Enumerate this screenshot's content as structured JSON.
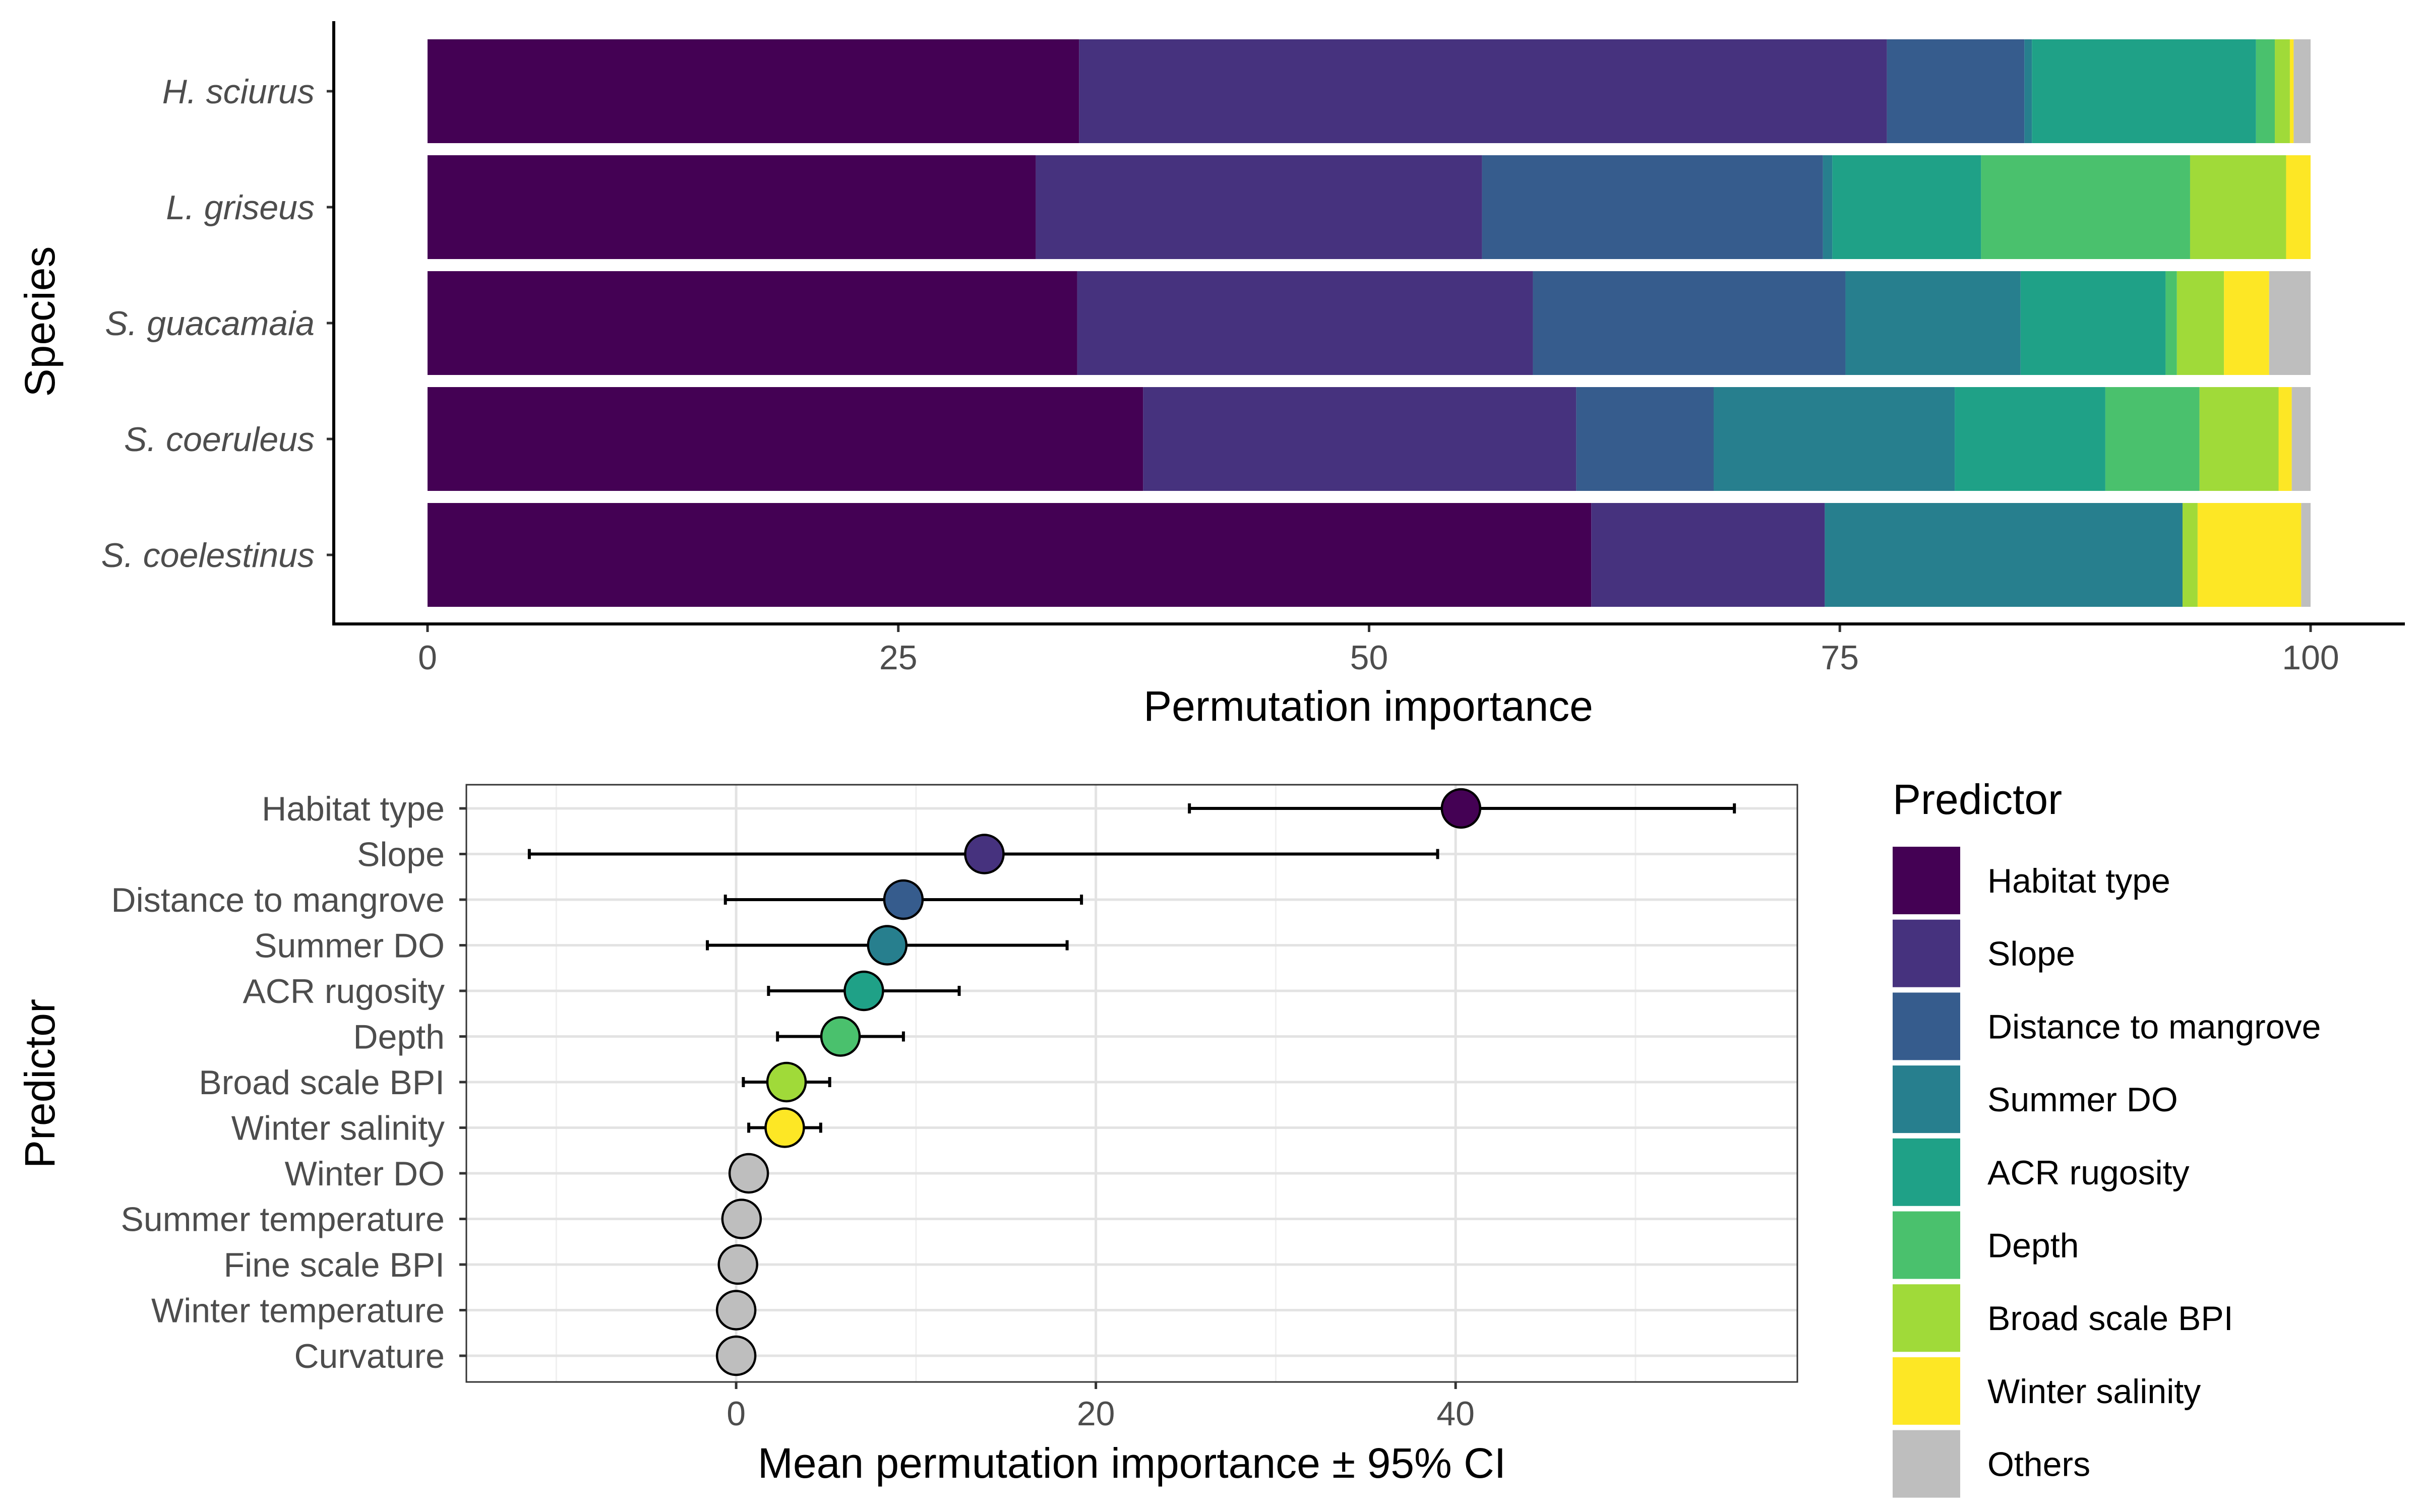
{
  "chart_data": [
    {
      "type": "bar",
      "orientation": "horizontal",
      "stacked": true,
      "ylabel": "Species",
      "xlabel": "Permutation importance",
      "xlim": [
        0,
        100
      ],
      "x_ticks": [
        "0",
        "25",
        "50",
        "75",
        "100"
      ],
      "grid": false,
      "categories": [
        "H. sciurus",
        "L. griseus",
        "S. guacamaia",
        "S. coeruleus",
        "S. coelestinus"
      ],
      "series": [
        {
          "name": "Habitat type",
          "color": "#440154",
          "values": [
            34.6,
            32.3,
            34.5,
            38.0,
            61.8
          ]
        },
        {
          "name": "Slope",
          "color": "#46327E",
          "values": [
            42.9,
            23.7,
            24.2,
            23.0,
            12.4
          ]
        },
        {
          "name": "Distance to mangrove",
          "color": "#365C8D",
          "values": [
            7.3,
            18.1,
            16.6,
            7.3,
            0.0
          ]
        },
        {
          "name": "Summer DO",
          "color": "#277F8E",
          "values": [
            0.4,
            0.5,
            9.3,
            12.8,
            19.0
          ]
        },
        {
          "name": "ACR rugosity",
          "color": "#1FA187",
          "values": [
            11.9,
            7.9,
            7.7,
            8.0,
            0.0
          ]
        },
        {
          "name": "Depth",
          "color": "#4AC16D",
          "values": [
            1.0,
            11.1,
            0.6,
            5.0,
            0.0
          ]
        },
        {
          "name": "Broad scale BPI",
          "color": "#A0DA39",
          "values": [
            0.8,
            5.1,
            2.5,
            4.2,
            0.8
          ]
        },
        {
          "name": "Winter salinity",
          "color": "#FDE725",
          "values": [
            0.2,
            1.3,
            2.4,
            0.7,
            5.5
          ]
        },
        {
          "name": "Others",
          "color": "#BEBEBE",
          "values": [
            0.9,
            0.0,
            2.2,
            1.0,
            0.5
          ]
        }
      ]
    },
    {
      "type": "scatter",
      "subtype": "point-with-error-bars",
      "xlabel": "Mean permutation importance ± 95% CI",
      "ylabel": "Predictor",
      "xlim": [
        -15,
        59
      ],
      "x_ticks": [
        "0",
        "20",
        "40"
      ],
      "grid": true,
      "categories": [
        "Habitat type",
        "Slope",
        "Distance to mangrove",
        "Summer DO",
        "ACR rugosity",
        "Depth",
        "Broad scale BPI",
        "Winter salinity",
        "Winter DO",
        "Summer temperature",
        "Fine scale BPI",
        "Winter temperature",
        "Curvature"
      ],
      "mean": [
        40.3,
        13.8,
        9.3,
        8.4,
        7.1,
        5.8,
        2.8,
        2.7,
        0.7,
        0.3,
        0.1,
        0.0,
        0.0
      ],
      "ci_low": [
        25.2,
        -11.5,
        -0.6,
        -1.6,
        1.8,
        2.3,
        0.4,
        0.7,
        -0.3,
        -0.1,
        0.0,
        -0.1,
        -0.1
      ],
      "ci_high": [
        55.5,
        39.0,
        19.2,
        18.4,
        12.4,
        9.3,
        5.2,
        4.7,
        1.4,
        0.6,
        0.2,
        0.1,
        0.1
      ],
      "colors": [
        "#440154",
        "#46327E",
        "#365C8D",
        "#277F8E",
        "#1FA187",
        "#4AC16D",
        "#A0DA39",
        "#FDE725",
        "#BEBEBE",
        "#BEBEBE",
        "#BEBEBE",
        "#BEBEBE",
        "#BEBEBE"
      ]
    }
  ],
  "legend": {
    "title": "Predictor",
    "placement": "right",
    "items": [
      {
        "label": "Habitat type",
        "color": "#440154"
      },
      {
        "label": "Slope",
        "color": "#46327E"
      },
      {
        "label": "Distance to mangrove",
        "color": "#365C8D"
      },
      {
        "label": "Summer DO",
        "color": "#277F8E"
      },
      {
        "label": "ACR rugosity",
        "color": "#1FA187"
      },
      {
        "label": "Depth",
        "color": "#4AC16D"
      },
      {
        "label": "Broad scale BPI",
        "color": "#A0DA39"
      },
      {
        "label": "Winter salinity",
        "color": "#FDE725"
      },
      {
        "label": "Others",
        "color": "#BEBEBE"
      }
    ]
  }
}
